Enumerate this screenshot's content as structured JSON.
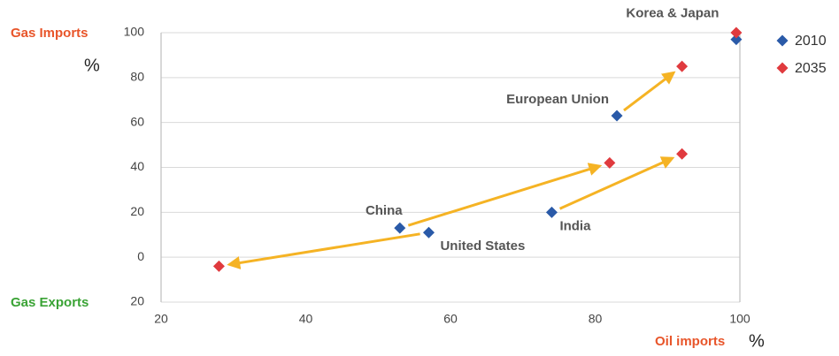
{
  "chart_data": {
    "type": "scatter",
    "y_label_top": "Gas Imports",
    "y_label_bottom": "Gas Exports",
    "y_unit": "%",
    "x_label": "Oil imports",
    "x_unit": "%",
    "xlim": [
      20,
      100
    ],
    "xticks": [
      20,
      40,
      60,
      80,
      100
    ],
    "ylim": [
      -20,
      100
    ],
    "yticks": [
      {
        "value": -20,
        "label": "20"
      },
      0,
      20,
      40,
      60,
      80,
      100
    ],
    "grid": true,
    "legend": "top-right",
    "series": [
      {
        "name": "2010",
        "color": "#2a5aa8",
        "labels": [
          "China",
          "United States",
          "India",
          "European Union",
          "Korea & Japan"
        ],
        "x": [
          53,
          57,
          74,
          83,
          99.5
        ],
        "values": [
          13,
          11,
          20,
          63,
          97
        ]
      },
      {
        "name": "2035",
        "color": "#e03a3e",
        "x": [
          82,
          28,
          92,
          92,
          99.5
        ],
        "values": [
          42,
          -4,
          46,
          85,
          100
        ]
      }
    ]
  }
}
